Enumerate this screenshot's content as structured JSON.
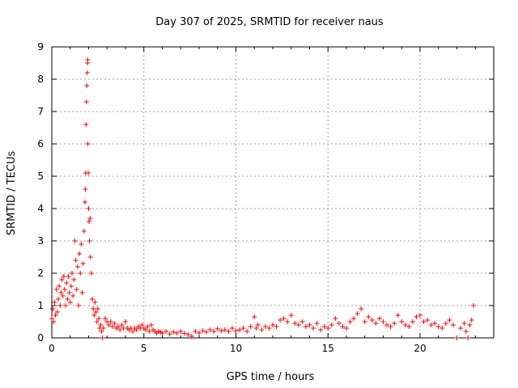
{
  "chart_data": {
    "type": "scatter",
    "title": "Day 307 of 2025, SRMTID for receiver naus",
    "xlabel": "GPS time / hours",
    "ylabel": "SRMTID / TECUs",
    "xlim": [
      0,
      24
    ],
    "ylim": [
      0,
      9
    ],
    "xticks": [
      0,
      5,
      10,
      15,
      20
    ],
    "yticks": [
      0,
      1,
      2,
      3,
      4,
      5,
      6,
      7,
      8,
      9
    ],
    "grid": true,
    "marker": "+",
    "marker_color": "#ff0000",
    "series": [
      {
        "name": "SRMTID",
        "points": [
          [
            0.0,
            0.6
          ],
          [
            0.05,
            0.9
          ],
          [
            0.1,
            0.5
          ],
          [
            0.15,
            1.1
          ],
          [
            0.2,
            0.7
          ],
          [
            0.25,
            1.5
          ],
          [
            0.3,
            0.8
          ],
          [
            0.35,
            1.2
          ],
          [
            0.4,
            1.6
          ],
          [
            0.45,
            1.0
          ],
          [
            0.5,
            1.4
          ],
          [
            0.55,
            1.8
          ],
          [
            0.6,
            1.3
          ],
          [
            0.65,
            1.9
          ],
          [
            0.7,
            1.5
          ],
          [
            0.75,
            1.0
          ],
          [
            0.8,
            1.7
          ],
          [
            0.85,
            1.2
          ],
          [
            0.9,
            1.9
          ],
          [
            0.95,
            1.4
          ],
          [
            1.0,
            1.1
          ],
          [
            1.05,
            1.6
          ],
          [
            1.1,
            2.0
          ],
          [
            1.15,
            1.3
          ],
          [
            1.2,
            1.8
          ],
          [
            1.25,
            3.0
          ],
          [
            1.3,
            2.4
          ],
          [
            1.35,
            1.5
          ],
          [
            1.4,
            2.2
          ],
          [
            1.45,
            1.0
          ],
          [
            1.5,
            2.6
          ],
          [
            1.55,
            2.0
          ],
          [
            1.6,
            2.9
          ],
          [
            1.65,
            1.4
          ],
          [
            1.7,
            2.3
          ],
          [
            1.75,
            3.3
          ],
          [
            1.8,
            4.2
          ],
          [
            1.82,
            4.6
          ],
          [
            1.84,
            5.1
          ],
          [
            1.86,
            6.6
          ],
          [
            1.88,
            7.3
          ],
          [
            1.9,
            7.8
          ],
          [
            1.92,
            8.2
          ],
          [
            1.94,
            8.5
          ],
          [
            1.95,
            8.6
          ],
          [
            1.96,
            6.0
          ],
          [
            1.98,
            5.1
          ],
          [
            2.0,
            4.0
          ],
          [
            2.02,
            3.6
          ],
          [
            2.05,
            3.0
          ],
          [
            2.08,
            3.7
          ],
          [
            2.1,
            2.5
          ],
          [
            2.15,
            2.0
          ],
          [
            2.2,
            1.2
          ],
          [
            2.25,
            0.9
          ],
          [
            2.3,
            0.7
          ],
          [
            2.35,
            1.1
          ],
          [
            2.4,
            0.8
          ],
          [
            2.45,
            0.5
          ],
          [
            2.5,
            0.9
          ],
          [
            2.55,
            0.6
          ],
          [
            2.6,
            0.3
          ],
          [
            2.65,
            0.4
          ],
          [
            2.7,
            0.2
          ],
          [
            2.75,
            0.0
          ],
          [
            2.8,
            0.3
          ],
          [
            2.9,
            0.6
          ],
          [
            3.0,
            0.5
          ],
          [
            3.1,
            0.4
          ],
          [
            3.2,
            0.5
          ],
          [
            3.3,
            0.35
          ],
          [
            3.4,
            0.45
          ],
          [
            3.5,
            0.3
          ],
          [
            3.6,
            0.35
          ],
          [
            3.7,
            0.25
          ],
          [
            3.8,
            0.4
          ],
          [
            3.9,
            0.3
          ],
          [
            4.0,
            0.5
          ],
          [
            4.1,
            0.3
          ],
          [
            4.2,
            0.25
          ],
          [
            4.3,
            0.3
          ],
          [
            4.4,
            0.2
          ],
          [
            4.5,
            0.3
          ],
          [
            4.6,
            0.25
          ],
          [
            4.7,
            0.35
          ],
          [
            4.8,
            0.3
          ],
          [
            4.9,
            0.4
          ],
          [
            5.0,
            0.3
          ],
          [
            5.1,
            0.25
          ],
          [
            5.2,
            0.35
          ],
          [
            5.3,
            0.2
          ],
          [
            5.4,
            0.4
          ],
          [
            5.5,
            0.25
          ],
          [
            5.6,
            0.2
          ],
          [
            5.7,
            0.15
          ],
          [
            5.8,
            0.2
          ],
          [
            5.9,
            0.18
          ],
          [
            6.0,
            0.15
          ],
          [
            6.2,
            0.2
          ],
          [
            6.4,
            0.12
          ],
          [
            6.6,
            0.18
          ],
          [
            6.8,
            0.15
          ],
          [
            7.0,
            0.2
          ],
          [
            7.2,
            0.14
          ],
          [
            7.4,
            0.1
          ],
          [
            7.6,
            0.05
          ],
          [
            7.8,
            0.2
          ],
          [
            8.0,
            0.15
          ],
          [
            8.2,
            0.22
          ],
          [
            8.4,
            0.18
          ],
          [
            8.6,
            0.25
          ],
          [
            8.8,
            0.2
          ],
          [
            9.0,
            0.28
          ],
          [
            9.2,
            0.22
          ],
          [
            9.4,
            0.25
          ],
          [
            9.6,
            0.2
          ],
          [
            9.8,
            0.3
          ],
          [
            10.0,
            0.22
          ],
          [
            10.2,
            0.25
          ],
          [
            10.4,
            0.3
          ],
          [
            10.6,
            0.2
          ],
          [
            10.8,
            0.35
          ],
          [
            11.0,
            0.65
          ],
          [
            11.1,
            0.3
          ],
          [
            11.2,
            0.4
          ],
          [
            11.4,
            0.25
          ],
          [
            11.6,
            0.35
          ],
          [
            11.8,
            0.3
          ],
          [
            12.0,
            0.4
          ],
          [
            12.2,
            0.35
          ],
          [
            12.4,
            0.55
          ],
          [
            12.6,
            0.6
          ],
          [
            12.8,
            0.5
          ],
          [
            13.0,
            0.7
          ],
          [
            13.2,
            0.45
          ],
          [
            13.4,
            0.4
          ],
          [
            13.6,
            0.5
          ],
          [
            13.8,
            0.35
          ],
          [
            14.0,
            0.4
          ],
          [
            14.2,
            0.3
          ],
          [
            14.4,
            0.45
          ],
          [
            14.6,
            0.25
          ],
          [
            14.8,
            0.35
          ],
          [
            15.0,
            0.3
          ],
          [
            15.2,
            0.4
          ],
          [
            15.4,
            0.6
          ],
          [
            15.6,
            0.45
          ],
          [
            15.8,
            0.35
          ],
          [
            16.0,
            0.3
          ],
          [
            16.2,
            0.5
          ],
          [
            16.4,
            0.6
          ],
          [
            16.6,
            0.75
          ],
          [
            16.8,
            0.9
          ],
          [
            17.0,
            0.5
          ],
          [
            17.2,
            0.65
          ],
          [
            17.4,
            0.55
          ],
          [
            17.6,
            0.45
          ],
          [
            17.8,
            0.6
          ],
          [
            18.0,
            0.5
          ],
          [
            18.2,
            0.4
          ],
          [
            18.4,
            0.35
          ],
          [
            18.6,
            0.45
          ],
          [
            18.8,
            0.7
          ],
          [
            19.0,
            0.5
          ],
          [
            19.2,
            0.4
          ],
          [
            19.4,
            0.35
          ],
          [
            19.6,
            0.5
          ],
          [
            19.8,
            0.65
          ],
          [
            20.0,
            0.7
          ],
          [
            20.2,
            0.5
          ],
          [
            20.4,
            0.55
          ],
          [
            20.6,
            0.4
          ],
          [
            20.8,
            0.45
          ],
          [
            21.0,
            0.35
          ],
          [
            21.2,
            0.3
          ],
          [
            21.4,
            0.45
          ],
          [
            21.6,
            0.55
          ],
          [
            21.8,
            0.4
          ],
          [
            22.0,
            0.0
          ],
          [
            22.2,
            0.3
          ],
          [
            22.4,
            0.45
          ],
          [
            22.5,
            0.2
          ],
          [
            22.6,
            0.0
          ],
          [
            22.7,
            0.4
          ],
          [
            22.8,
            0.55
          ],
          [
            22.9,
            1.0
          ]
        ]
      }
    ]
  }
}
